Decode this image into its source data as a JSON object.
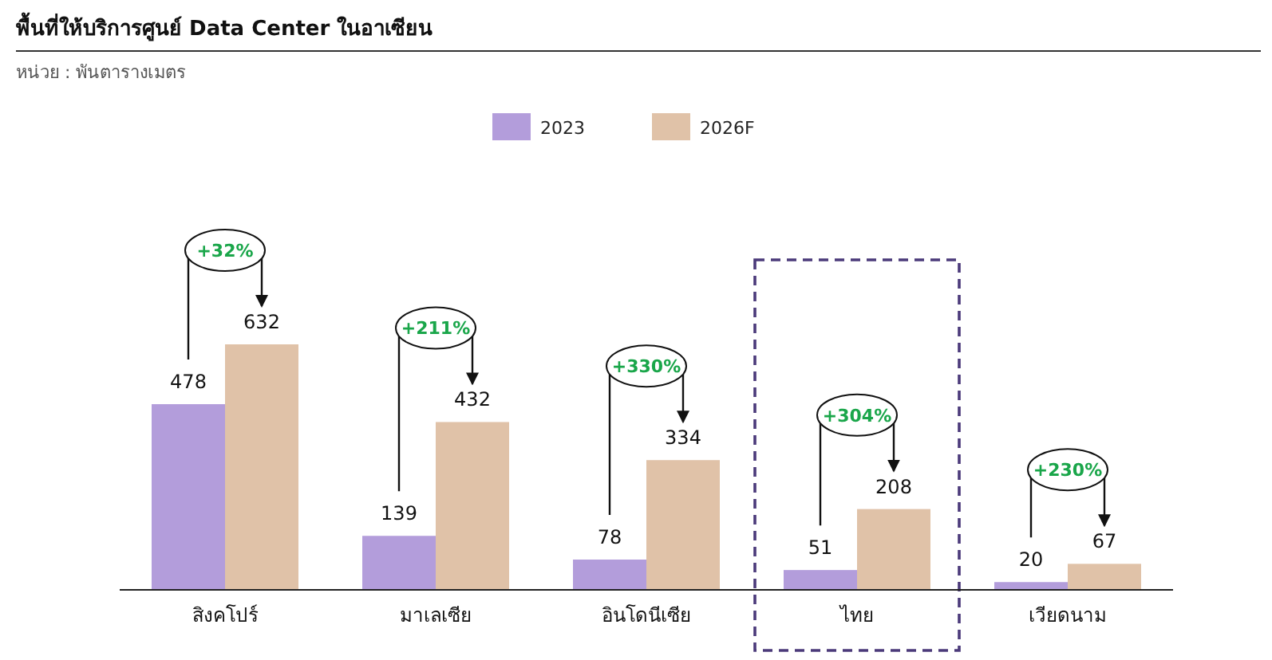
{
  "chart_data": {
    "type": "bar",
    "title": "พื้นที่ให้บริการศูนย์ Data Center ในอาเซียน",
    "subtitle": "หน่วย : พันตารางเมตร",
    "categories": [
      "สิงคโปร์",
      "มาเลเซีย",
      "อินโดนีเซีย",
      "ไทย",
      "เวียดนาม"
    ],
    "series": [
      {
        "name": "2023",
        "color": "#b39ddb",
        "values": [
          478,
          139,
          78,
          51,
          20
        ]
      },
      {
        "name": "2026F",
        "color": "#e0c2a8",
        "values": [
          632,
          432,
          334,
          208,
          67
        ]
      }
    ],
    "relative": false,
    "data_labels": true,
    "legend": "top",
    "annotations": [
      "+32%",
      "+211%",
      "+330%",
      "+304%",
      "+230%"
    ]
  }
}
